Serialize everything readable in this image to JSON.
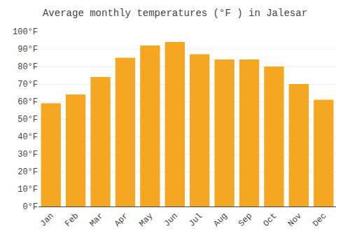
{
  "chart_data": {
    "type": "bar",
    "title": "Average monthly temperatures (°F ) in Jalesar",
    "categories": [
      "Jan",
      "Feb",
      "Mar",
      "Apr",
      "May",
      "Jun",
      "Jul",
      "Aug",
      "Sep",
      "Oct",
      "Nov",
      "Dec"
    ],
    "values": [
      59,
      64,
      74,
      85,
      92,
      94,
      87,
      84,
      84,
      80,
      70,
      61
    ],
    "color": "#F5A623",
    "ylim": [
      0,
      100
    ],
    "yticks": [
      {
        "value": 0,
        "label": "0°F"
      },
      {
        "value": 10,
        "label": "10°F"
      },
      {
        "value": 20,
        "label": "20°F"
      },
      {
        "value": 30,
        "label": "30°F"
      },
      {
        "value": 40,
        "label": "40°F"
      },
      {
        "value": 50,
        "label": "50°F"
      },
      {
        "value": 60,
        "label": "60°F"
      },
      {
        "value": 70,
        "label": "70°F"
      },
      {
        "value": 80,
        "label": "80°F"
      },
      {
        "value": 90,
        "label": "90°F"
      },
      {
        "value": 100,
        "label": "100°F"
      }
    ],
    "grid": true
  }
}
